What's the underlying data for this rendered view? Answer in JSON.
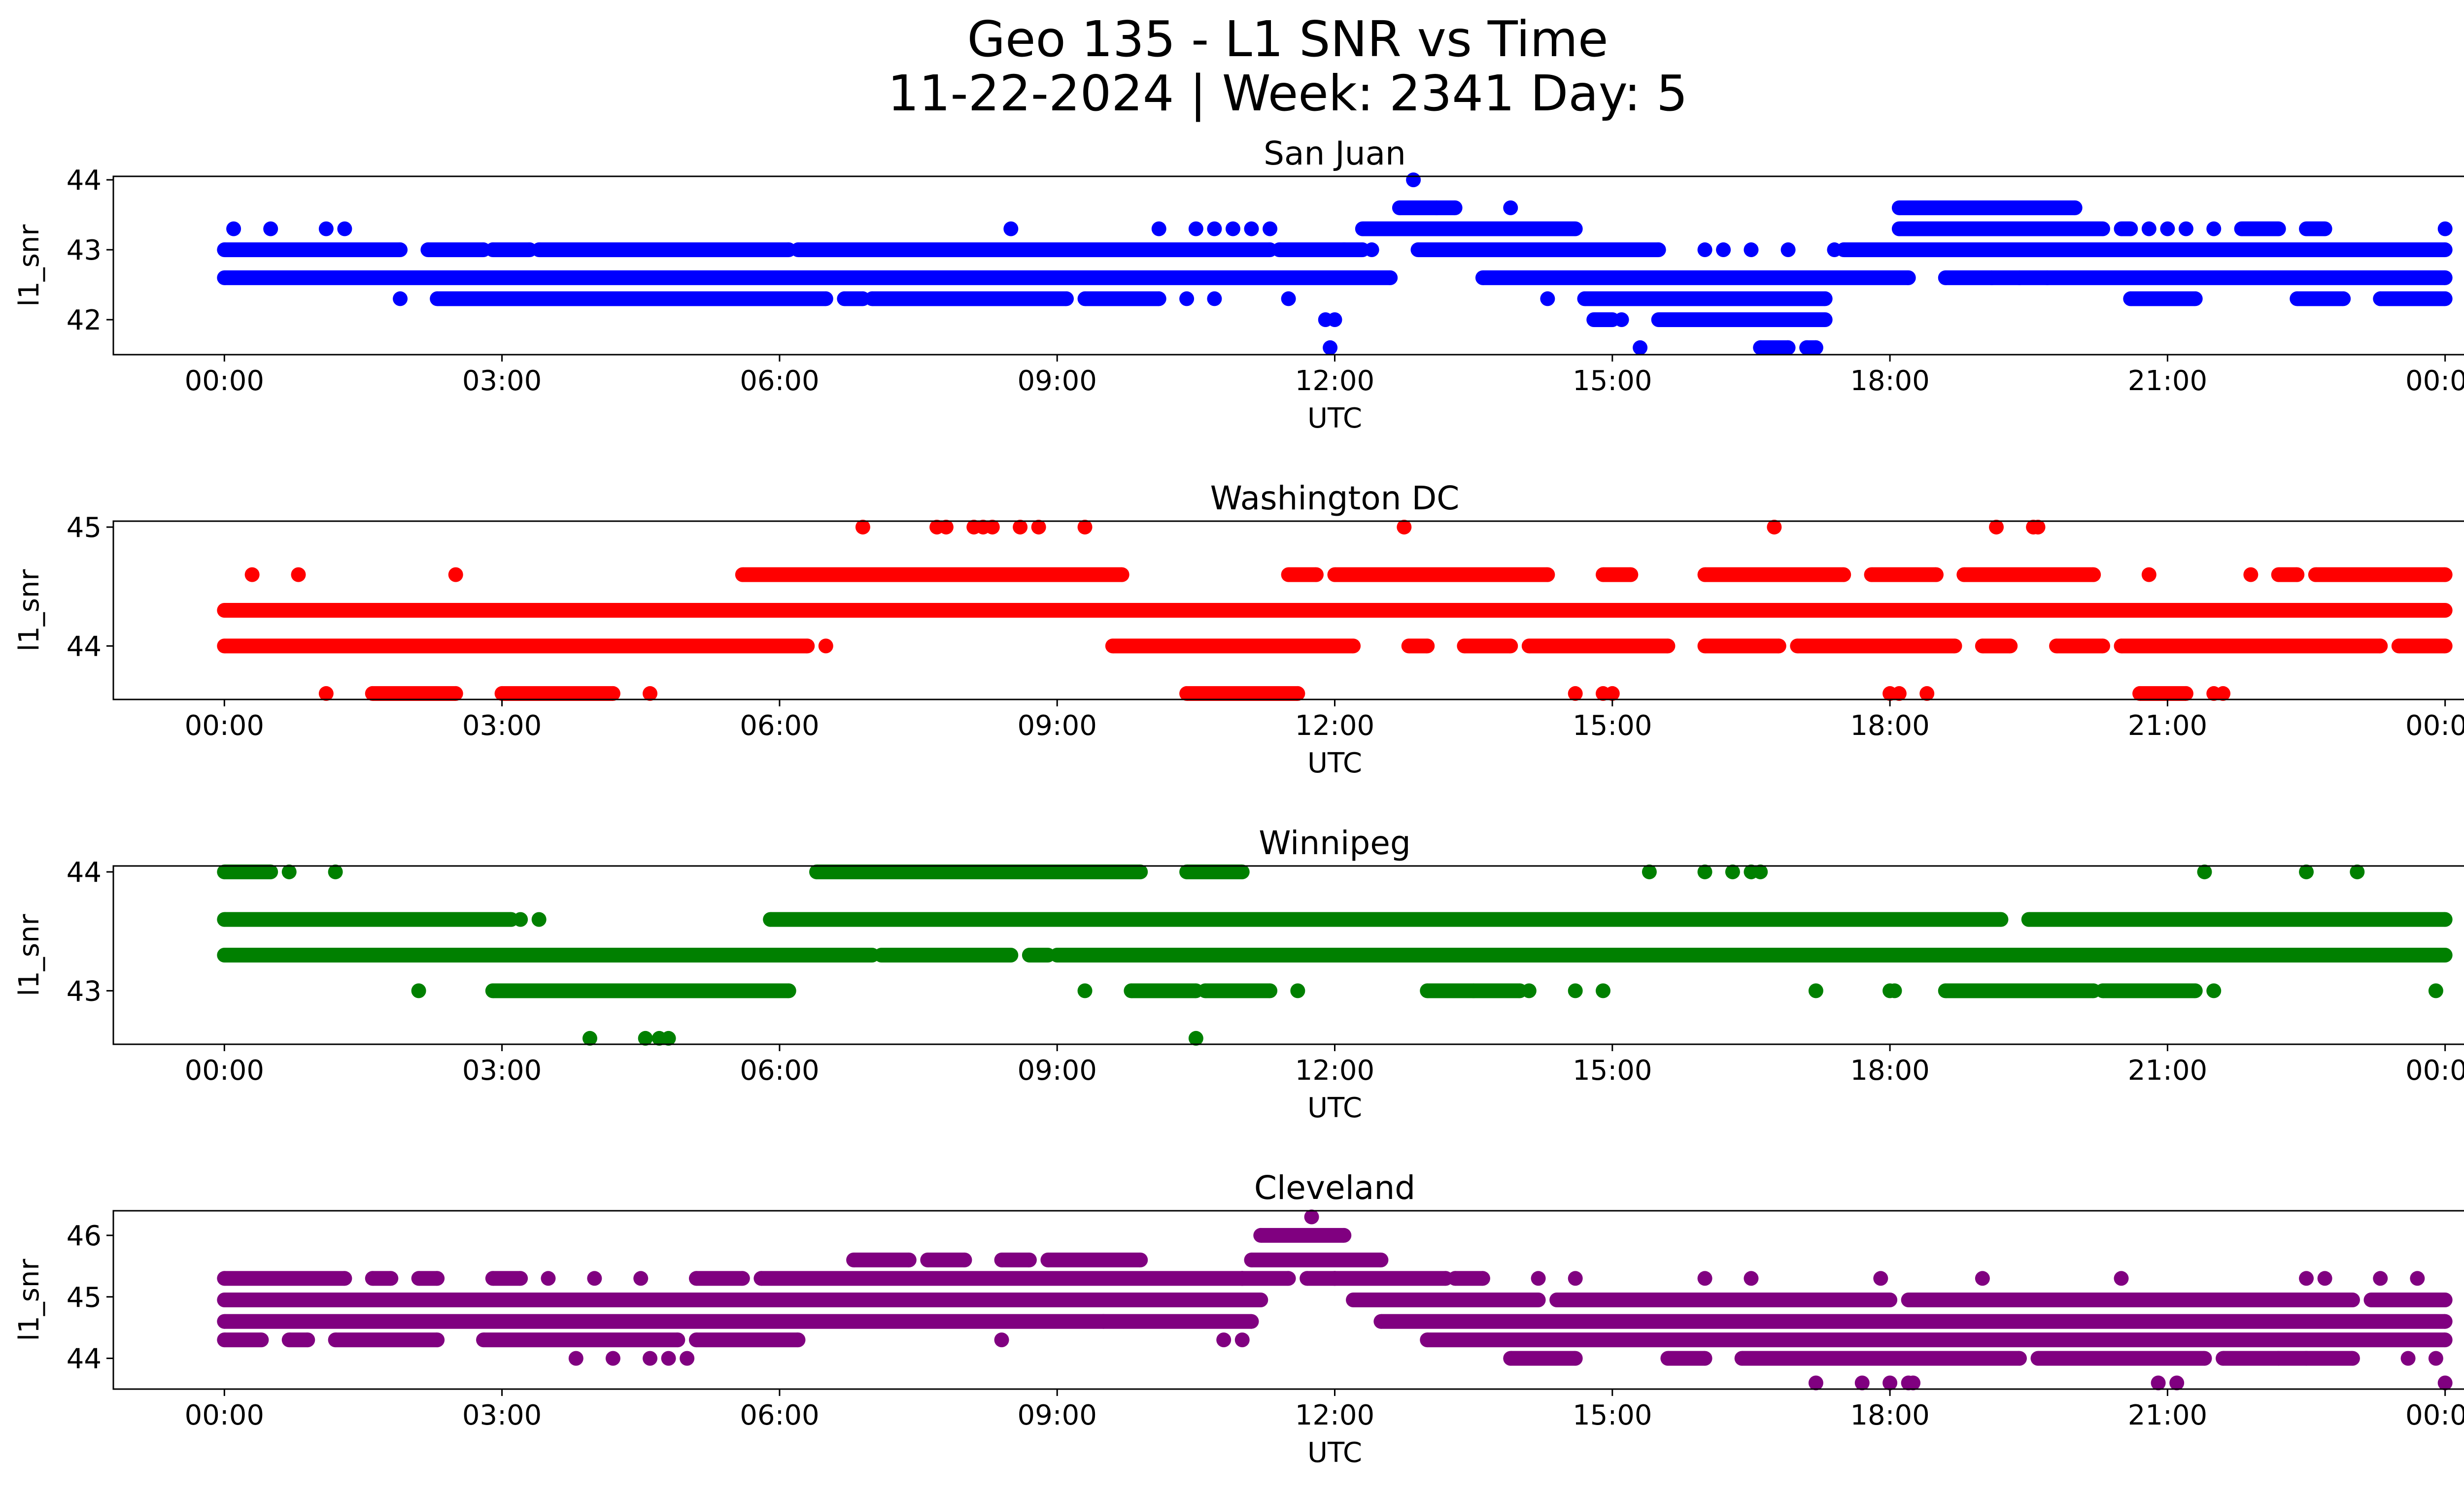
{
  "figure": {
    "title_line1": "Geo 135 - L1 SNR vs Time",
    "title_line2": "11-22-2024 | Week: 2341 Day: 5"
  },
  "chart_data": [
    {
      "type": "scatter",
      "title": "San Juan",
      "xlabel": "UTC",
      "ylabel": "l1_snr",
      "color": "#0000ff",
      "x_ticks": [
        "00:00",
        "03:00",
        "06:00",
        "09:00",
        "12:00",
        "15:00",
        "18:00",
        "21:00",
        "00:00"
      ],
      "xlim_hours": [
        -1.2,
        25.2
      ],
      "ylim": [
        41.5,
        44.05
      ],
      "y_ticks": [
        42,
        43,
        44
      ],
      "y_tick_labels": [
        "42",
        "43",
        "44"
      ],
      "segments": [
        {
          "y": 43.0,
          "ranges": [
            [
              0,
              1.9
            ],
            [
              2.2,
              2.8
            ],
            [
              2.9,
              3.3
            ],
            [
              3.4,
              6.1
            ],
            [
              6.2,
              11.3
            ],
            [
              11.4,
              12.3
            ],
            [
              12.9,
              15.5
            ],
            [
              17.5,
              24.0
            ]
          ]
        },
        {
          "y": 42.6,
          "ranges": [
            [
              0,
              12.6
            ],
            [
              13.6,
              18.2
            ],
            [
              18.6,
              24.0
            ]
          ]
        },
        {
          "y": 42.3,
          "ranges": [
            [
              2.3,
              6.5
            ],
            [
              6.7,
              6.9
            ],
            [
              7.0,
              9.1
            ],
            [
              9.3,
              10.1
            ],
            [
              14.7,
              17.3
            ],
            [
              20.6,
              21.3
            ],
            [
              22.4,
              22.9
            ],
            [
              23.3,
              24.0
            ]
          ]
        },
        {
          "y": 43.3,
          "ranges": [
            [
              12.3,
              14.6
            ],
            [
              18.1,
              20.3
            ],
            [
              20.5,
              20.6
            ],
            [
              21.8,
              22.2
            ],
            [
              22.5,
              22.7
            ]
          ]
        },
        {
          "y": 43.6,
          "ranges": [
            [
              12.7,
              13.3
            ],
            [
              18.1,
              20.0
            ]
          ]
        },
        {
          "y": 42.0,
          "ranges": [
            [
              14.8,
              15.0
            ],
            [
              15.5,
              17.3
            ]
          ]
        },
        {
          "y": 41.6,
          "ranges": [
            [
              16.6,
              16.9
            ],
            [
              17.1,
              17.2
            ]
          ]
        }
      ],
      "points": [
        [
          0.1,
          43.3
        ],
        [
          0.5,
          43.3
        ],
        [
          1.1,
          43.3
        ],
        [
          1.3,
          43.3
        ],
        [
          1.9,
          42.3
        ],
        [
          8.5,
          43.3
        ],
        [
          10.1,
          43.3
        ],
        [
          10.5,
          43.3
        ],
        [
          10.7,
          43.3
        ],
        [
          10.9,
          43.3
        ],
        [
          11.1,
          43.3
        ],
        [
          11.3,
          43.3
        ],
        [
          10.4,
          42.3
        ],
        [
          10.7,
          42.3
        ],
        [
          11.5,
          42.3
        ],
        [
          11.9,
          42.0
        ],
        [
          12.0,
          42.0
        ],
        [
          11.95,
          41.6
        ],
        [
          12.85,
          44.0
        ],
        [
          14.3,
          42.3
        ],
        [
          15.1,
          42.0
        ],
        [
          15.3,
          41.6
        ],
        [
          16.0,
          43.0
        ],
        [
          16.2,
          43.0
        ],
        [
          16.5,
          43.0
        ],
        [
          16.9,
          43.0
        ],
        [
          17.4,
          43.0
        ],
        [
          19.1,
          42.6
        ],
        [
          19.4,
          42.6
        ],
        [
          13.9,
          43.6
        ],
        [
          13.1,
          43.6
        ],
        [
          20.8,
          43.3
        ],
        [
          21.0,
          43.3
        ],
        [
          21.2,
          43.3
        ],
        [
          21.5,
          43.3
        ],
        [
          24.0,
          43.3
        ],
        [
          12.1,
          43.0
        ],
        [
          12.4,
          43.0
        ],
        [
          19.7,
          42.6
        ]
      ]
    },
    {
      "type": "scatter",
      "title": "Washington DC",
      "xlabel": "UTC",
      "ylabel": "l1_snr",
      "color": "#ff0000",
      "x_ticks": [
        "00:00",
        "03:00",
        "06:00",
        "09:00",
        "12:00",
        "15:00",
        "18:00",
        "21:00",
        "00:00"
      ],
      "xlim_hours": [
        -1.2,
        25.2
      ],
      "ylim": [
        43.55,
        45.05
      ],
      "y_ticks": [
        44,
        45
      ],
      "y_tick_labels": [
        "44",
        "45"
      ],
      "segments": [
        {
          "y": 44.3,
          "ranges": [
            [
              0,
              24.0
            ]
          ]
        },
        {
          "y": 44.0,
          "ranges": [
            [
              0,
              6.3
            ],
            [
              9.6,
              12.2
            ],
            [
              12.8,
              13.0
            ],
            [
              13.4,
              13.9
            ],
            [
              14.1,
              15.6
            ],
            [
              16.0,
              16.8
            ],
            [
              17.0,
              18.7
            ],
            [
              19.0,
              19.3
            ],
            [
              19.8,
              20.3
            ],
            [
              20.5,
              23.3
            ],
            [
              23.5,
              24.0
            ]
          ]
        },
        {
          "y": 44.6,
          "ranges": [
            [
              5.6,
              9.7
            ],
            [
              11.5,
              11.8
            ],
            [
              12.0,
              14.3
            ],
            [
              14.9,
              15.2
            ],
            [
              16.0,
              17.5
            ],
            [
              17.8,
              18.5
            ],
            [
              18.8,
              20.2
            ],
            [
              22.2,
              22.4
            ],
            [
              22.6,
              24.0
            ]
          ]
        },
        {
          "y": 43.6,
          "ranges": [
            [
              1.6,
              2.5
            ],
            [
              3.0,
              4.2
            ],
            [
              10.4,
              11.6
            ],
            [
              20.7,
              21.2
            ]
          ]
        }
      ],
      "points": [
        [
          0.3,
          44.6
        ],
        [
          0.8,
          44.6
        ],
        [
          2.5,
          44.6
        ],
        [
          1.1,
          43.6
        ],
        [
          4.6,
          43.6
        ],
        [
          6.9,
          45.0
        ],
        [
          7.7,
          45.0
        ],
        [
          7.8,
          45.0
        ],
        [
          8.1,
          45.0
        ],
        [
          8.2,
          45.0
        ],
        [
          8.3,
          45.0
        ],
        [
          8.6,
          45.0
        ],
        [
          8.8,
          45.0
        ],
        [
          9.3,
          45.0
        ],
        [
          12.75,
          45.0
        ],
        [
          16.75,
          45.0
        ],
        [
          19.15,
          45.0
        ],
        [
          19.55,
          45.0
        ],
        [
          19.6,
          45.0
        ],
        [
          20.8,
          44.6
        ],
        [
          14.6,
          43.6
        ],
        [
          14.9,
          43.6
        ],
        [
          15.0,
          43.6
        ],
        [
          18.0,
          43.6
        ],
        [
          18.1,
          43.6
        ],
        [
          18.4,
          43.6
        ],
        [
          21.5,
          43.6
        ],
        [
          21.6,
          43.6
        ],
        [
          6.5,
          44.0
        ],
        [
          21.9,
          44.6
        ]
      ]
    },
    {
      "type": "scatter",
      "title": "Winnipeg",
      "xlabel": "UTC",
      "ylabel": "l1_snr",
      "color": "#008000",
      "x_ticks": [
        "00:00",
        "03:00",
        "06:00",
        "09:00",
        "12:00",
        "15:00",
        "18:00",
        "21:00",
        "00:00"
      ],
      "xlim_hours": [
        -1.2,
        25.2
      ],
      "ylim": [
        42.55,
        44.05
      ],
      "y_ticks": [
        43,
        44
      ],
      "y_tick_labels": [
        "43",
        "44"
      ],
      "segments": [
        {
          "y": 43.3,
          "ranges": [
            [
              0,
              7.0
            ],
            [
              7.1,
              8.5
            ],
            [
              8.7,
              8.9
            ],
            [
              9.0,
              24.0
            ]
          ]
        },
        {
          "y": 43.6,
          "ranges": [
            [
              0,
              3.1
            ],
            [
              5.9,
              19.2
            ],
            [
              19.5,
              24.0
            ]
          ]
        },
        {
          "y": 43.0,
          "ranges": [
            [
              2.9,
              6.1
            ],
            [
              9.8,
              10.5
            ],
            [
              10.6,
              11.3
            ],
            [
              13.0,
              14.0
            ],
            [
              18.6,
              20.2
            ],
            [
              20.3,
              21.3
            ]
          ]
        },
        {
          "y": 44.0,
          "ranges": [
            [
              0,
              0.5
            ],
            [
              6.4,
              9.9
            ],
            [
              10.4,
              11.0
            ]
          ]
        }
      ],
      "points": [
        [
          0.7,
          44.0
        ],
        [
          1.2,
          44.0
        ],
        [
          3.2,
          43.6
        ],
        [
          3.4,
          43.6
        ],
        [
          2.1,
          43.0
        ],
        [
          9.3,
          43.0
        ],
        [
          11.6,
          43.0
        ],
        [
          14.6,
          43.0
        ],
        [
          14.9,
          43.0
        ],
        [
          17.2,
          43.0
        ],
        [
          18.0,
          43.0
        ],
        [
          18.05,
          43.0
        ],
        [
          21.5,
          43.0
        ],
        [
          23.9,
          43.0
        ],
        [
          15.4,
          44.0
        ],
        [
          16.0,
          44.0
        ],
        [
          16.3,
          44.0
        ],
        [
          16.5,
          44.0
        ],
        [
          16.6,
          44.0
        ],
        [
          21.4,
          44.0
        ],
        [
          22.5,
          44.0
        ],
        [
          23.05,
          44.0
        ],
        [
          3.95,
          42.6
        ],
        [
          4.55,
          42.6
        ],
        [
          4.7,
          42.6
        ],
        [
          4.8,
          42.6
        ],
        [
          10.5,
          42.6
        ],
        [
          14.1,
          43.0
        ],
        [
          13.5,
          43.0
        ]
      ]
    },
    {
      "type": "scatter",
      "title": "Cleveland",
      "xlabel": "UTC",
      "ylabel": "l1_snr",
      "color": "#800080",
      "x_ticks": [
        "00:00",
        "03:00",
        "06:00",
        "09:00",
        "12:00",
        "15:00",
        "18:00",
        "21:00",
        "00:00"
      ],
      "xlim_hours": [
        -1.2,
        25.2
      ],
      "ylim": [
        43.5,
        46.4
      ],
      "y_ticks": [
        44,
        45,
        46
      ],
      "y_tick_labels": [
        "44",
        "45",
        "46"
      ],
      "segments": [
        {
          "y": 44.95,
          "ranges": [
            [
              0,
              11.2
            ],
            [
              12.2,
              14.2
            ],
            [
              14.4,
              18.0
            ],
            [
              18.2,
              23.0
            ],
            [
              23.2,
              24.0
            ]
          ]
        },
        {
          "y": 44.6,
          "ranges": [
            [
              0,
              11.1
            ],
            [
              12.5,
              24.0
            ]
          ]
        },
        {
          "y": 44.3,
          "ranges": [
            [
              0,
              0.4
            ],
            [
              0.7,
              0.9
            ],
            [
              1.2,
              2.3
            ],
            [
              2.8,
              4.9
            ],
            [
              5.1,
              6.2
            ],
            [
              13.0,
              24.0
            ]
          ]
        },
        {
          "y": 45.3,
          "ranges": [
            [
              0,
              1.3
            ],
            [
              1.6,
              1.8
            ],
            [
              2.1,
              2.3
            ],
            [
              2.9,
              3.2
            ],
            [
              5.1,
              5.6
            ],
            [
              5.8,
              11.0
            ],
            [
              11.0,
              11.5
            ],
            [
              11.7,
              12.0
            ],
            [
              12.0,
              13.2
            ],
            [
              13.3,
              13.6
            ]
          ]
        },
        {
          "y": 45.6,
          "ranges": [
            [
              6.8,
              7.4
            ],
            [
              7.6,
              8.0
            ],
            [
              8.4,
              8.7
            ],
            [
              8.9,
              9.9
            ],
            [
              11.1,
              12.5
            ]
          ]
        },
        {
          "y": 46.0,
          "ranges": [
            [
              11.2,
              12.1
            ]
          ]
        },
        {
          "y": 44.0,
          "ranges": [
            [
              13.9,
              14.6
            ],
            [
              15.6,
              16.0
            ],
            [
              16.4,
              19.4
            ],
            [
              19.6,
              21.4
            ],
            [
              21.6,
              23.0
            ]
          ]
        }
      ],
      "points": [
        [
          11.75,
          46.3
        ],
        [
          3.8,
          44.0
        ],
        [
          4.2,
          44.0
        ],
        [
          4.6,
          44.0
        ],
        [
          4.8,
          44.0
        ],
        [
          5.0,
          44.0
        ],
        [
          10.8,
          44.3
        ],
        [
          11.0,
          44.3
        ],
        [
          17.2,
          43.6
        ],
        [
          17.7,
          43.6
        ],
        [
          18.0,
          43.6
        ],
        [
          18.2,
          43.6
        ],
        [
          18.25,
          43.6
        ],
        [
          20.9,
          43.6
        ],
        [
          21.1,
          43.6
        ],
        [
          24.0,
          43.6
        ],
        [
          14.2,
          45.3
        ],
        [
          14.6,
          45.3
        ],
        [
          16.0,
          45.3
        ],
        [
          16.5,
          45.3
        ],
        [
          17.9,
          45.3
        ],
        [
          19.0,
          45.3
        ],
        [
          20.5,
          45.3
        ],
        [
          22.5,
          45.3
        ],
        [
          22.7,
          45.3
        ],
        [
          23.3,
          45.3
        ],
        [
          23.7,
          45.3
        ],
        [
          3.5,
          45.3
        ],
        [
          4.0,
          45.3
        ],
        [
          4.5,
          45.3
        ],
        [
          9.5,
          44.6
        ],
        [
          8.4,
          44.3
        ],
        [
          23.6,
          44.0
        ],
        [
          23.9,
          44.0
        ],
        [
          22.2,
          44.0
        ],
        [
          22.5,
          44.0
        ]
      ]
    }
  ]
}
